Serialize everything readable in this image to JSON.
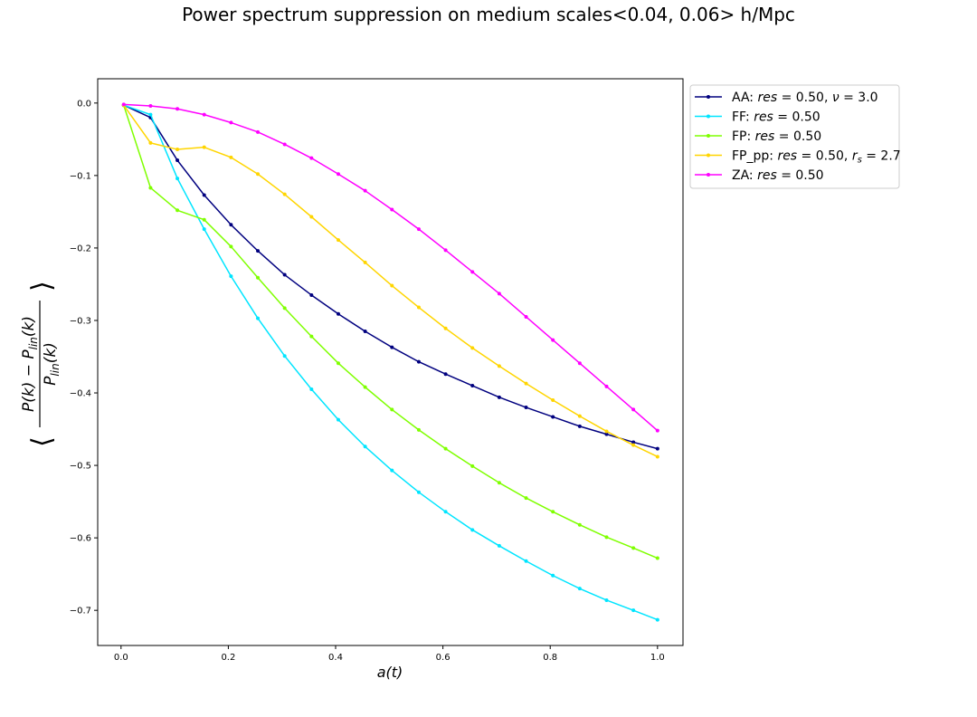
{
  "chart_data": {
    "type": "line",
    "title": "Power spectrum suppression on medium scales<0.04, 0.06> h/Mpc",
    "xlabel": "a(t)",
    "ylabel": "⟨(P(k) − P_lin(k)) / P_lin(k)⟩",
    "ylabel_parts": {
      "num": "P(k) − P",
      "num_sub": "lin",
      "num_tail": "(k)",
      "den": "P",
      "den_sub": "lin",
      "den_tail": "(k)",
      "open": "⟨",
      "close": "⟩"
    },
    "xlim": [
      -0.0435,
      1.0475
    ],
    "ylim": [
      -0.7485,
      0.0335
    ],
    "xticks": [
      0.0,
      0.2,
      0.4,
      0.6,
      0.8,
      1.0
    ],
    "xtick_labels": [
      "0.0",
      "0.2",
      "0.4",
      "0.6",
      "0.8",
      "1.0"
    ],
    "yticks": [
      0.0,
      -0.1,
      -0.2,
      -0.3,
      -0.4,
      -0.5,
      -0.6,
      -0.7
    ],
    "ytick_labels": [
      "0.0",
      "−0.1",
      "−0.2",
      "−0.3",
      "−0.4",
      "−0.5",
      "−0.6",
      "−0.7"
    ],
    "grid": false,
    "legend_position": "outside-top-right",
    "x": [
      0.005,
      0.055,
      0.105,
      0.155,
      0.205,
      0.255,
      0.305,
      0.355,
      0.405,
      0.455,
      0.505,
      0.555,
      0.605,
      0.655,
      0.705,
      0.755,
      0.805,
      0.855,
      0.905,
      0.955,
      1.0
    ],
    "series": [
      {
        "name": "AA: res = 0.50, ν = 3.0",
        "legend_parts": [
          "AA: ",
          "res",
          " = 0.50, ",
          "ν",
          " = 3.0"
        ],
        "color": "#00007f",
        "values": [
          -0.003,
          -0.02,
          -0.079,
          -0.127,
          -0.168,
          -0.204,
          -0.237,
          -0.265,
          -0.291,
          -0.315,
          -0.337,
          -0.357,
          -0.374,
          -0.39,
          -0.406,
          -0.42,
          -0.433,
          -0.446,
          -0.457,
          -0.468,
          -0.477
        ]
      },
      {
        "name": "FF: res = 0.50",
        "legend_parts": [
          "FF: ",
          "res",
          " = 0.50"
        ],
        "color": "#00e5ff",
        "values": [
          -0.003,
          -0.016,
          -0.104,
          -0.174,
          -0.239,
          -0.297,
          -0.349,
          -0.395,
          -0.437,
          -0.474,
          -0.507,
          -0.537,
          -0.564,
          -0.589,
          -0.611,
          -0.632,
          -0.652,
          -0.67,
          -0.686,
          -0.7,
          -0.713
        ]
      },
      {
        "name": "FP: res = 0.50",
        "legend_parts": [
          "FP: ",
          "res",
          " = 0.50"
        ],
        "color": "#7fff00",
        "values": [
          -0.003,
          -0.117,
          -0.148,
          -0.161,
          -0.198,
          -0.241,
          -0.283,
          -0.322,
          -0.359,
          -0.392,
          -0.423,
          -0.451,
          -0.477,
          -0.501,
          -0.524,
          -0.545,
          -0.564,
          -0.582,
          -0.599,
          -0.614,
          -0.628
        ]
      },
      {
        "name": "FP_pp: res = 0.50, r_s = 2.7",
        "legend_parts": [
          "FP_pp: ",
          "res",
          " = 0.50, ",
          "r",
          "s",
          " = 2.7"
        ],
        "color": "#ffd500",
        "values": [
          -0.003,
          -0.055,
          -0.064,
          -0.061,
          -0.075,
          -0.098,
          -0.126,
          -0.157,
          -0.189,
          -0.22,
          -0.252,
          -0.282,
          -0.311,
          -0.338,
          -0.363,
          -0.387,
          -0.41,
          -0.432,
          -0.453,
          -0.472,
          -0.488
        ]
      },
      {
        "name": "ZA: res = 0.50",
        "legend_parts": [
          "ZA: ",
          "res",
          " = 0.50"
        ],
        "color": "#ff00ff",
        "values": [
          -0.002,
          -0.004,
          -0.008,
          -0.016,
          -0.027,
          -0.04,
          -0.057,
          -0.076,
          -0.098,
          -0.121,
          -0.147,
          -0.174,
          -0.203,
          -0.233,
          -0.263,
          -0.295,
          -0.327,
          -0.359,
          -0.391,
          -0.423,
          -0.452
        ]
      }
    ]
  }
}
